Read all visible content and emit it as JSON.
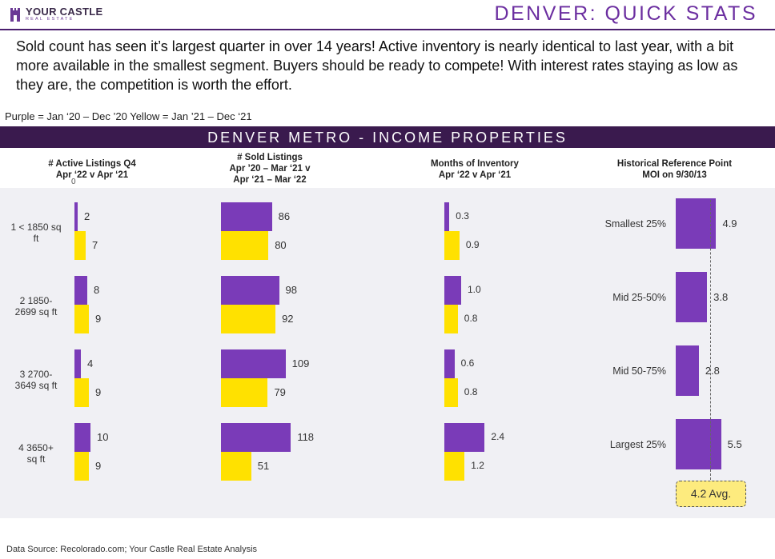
{
  "header": {
    "logo_title": "YOUR CASTLE",
    "logo_sub": "REAL ESTATE",
    "page_title": "DENVER: QUICK STATS"
  },
  "intro": "Sold count has seen it’s largest quarter in over 14 years! Active inventory is nearly identical to last year, with a bit more available in the smallest segment. Buyers should be ready to compete! With interest rates staying as low as they are, the competition is worth the effort.",
  "legend_note": "Purple = Jan ‘20 – Dec ’20 Yellow = Jan ’21 – Dec ‘21",
  "banner": "DENVER METRO - INCOME PROPERTIES",
  "columns": {
    "active": [
      "# Active Listings Q4",
      "Apr ‘22 v Apr ‘21"
    ],
    "sold": [
      "# Sold Listings",
      "Apr ’20 – Mar ‘21 v",
      "Apr ‘21 – Mar ‘22"
    ],
    "moi": [
      "Months of Inventory",
      "Apr ‘22 v Apr ‘21"
    ],
    "hist": [
      "Historical Reference Point",
      "MOI on 9/30/13"
    ]
  },
  "axis_zero": "0",
  "rows": [
    [
      "1 < 1850 sq",
      "ft"
    ],
    [
      "2 1850-",
      "2699  sq ft"
    ],
    [
      "3 2700-",
      "3649 sq ft"
    ],
    [
      "4 3650+",
      "sq ft"
    ]
  ],
  "source": "Data Source: Recolorado.com; Your Castle Real Estate Analysis",
  "colors": {
    "purple": "#7a3bb8",
    "yellow": "#ffe100",
    "banner": "#3a1a4e",
    "title": "#6b2ea0"
  },
  "chart_data": [
    {
      "type": "bar",
      "orientation": "horizontal",
      "title": "# Active Listings Q4 Apr ‘22 v Apr ‘21",
      "categories": [
        "1 < 1850 sq ft",
        "2 1850-2699  sq ft",
        "3 2700-3649 sq ft",
        "4 3650+ sq ft"
      ],
      "series": [
        {
          "color": "#7a3bb8",
          "values": [
            2,
            8,
            4,
            10
          ]
        },
        {
          "color": "#ffe100",
          "values": [
            7,
            9,
            9,
            9
          ]
        }
      ],
      "xlim": [
        0,
        40
      ]
    },
    {
      "type": "bar",
      "orientation": "horizontal",
      "title": "# Sold Listings Apr ’20 – Mar ‘21 v Apr ‘21 – Mar ‘22",
      "categories": [
        "1 < 1850 sq ft",
        "2 1850-2699  sq ft",
        "3 2700-3649 sq ft",
        "4 3650+ sq ft"
      ],
      "series": [
        {
          "color": "#7a3bb8",
          "values": [
            86,
            98,
            109,
            118
          ]
        },
        {
          "color": "#ffe100",
          "values": [
            80,
            92,
            79,
            51
          ]
        }
      ],
      "xlim": [
        0,
        175
      ]
    },
    {
      "type": "bar",
      "orientation": "horizontal",
      "title": "Months of Inventory Apr ‘22 v Apr ‘21",
      "categories": [
        "1 < 1850 sq ft",
        "2 1850-2699  sq ft",
        "3 2700-3649 sq ft",
        "4 3650+ sq ft"
      ],
      "series": [
        {
          "color": "#7a3bb8",
          "values": [
            "0.3",
            "1.0",
            "0.6",
            "2.4"
          ]
        },
        {
          "color": "#ffe100",
          "values": [
            "0.9",
            "0.8",
            "0.8",
            "1.2"
          ]
        }
      ],
      "xlim": [
        0,
        4
      ]
    },
    {
      "type": "bar",
      "orientation": "horizontal",
      "title": "Historical Reference Point MOI on 9/30/13",
      "categories": [
        "Smallest 25%",
        "Mid 25-50%",
        "Mid 50-75%",
        "Largest 25%"
      ],
      "series": [
        {
          "color": "#7a3bb8",
          "values": [
            4.9,
            3.8,
            2.8,
            5.5
          ]
        }
      ],
      "reference_line": {
        "value": 4.2,
        "label": "4.2 Avg."
      },
      "xlim": [
        0,
        10
      ]
    }
  ]
}
